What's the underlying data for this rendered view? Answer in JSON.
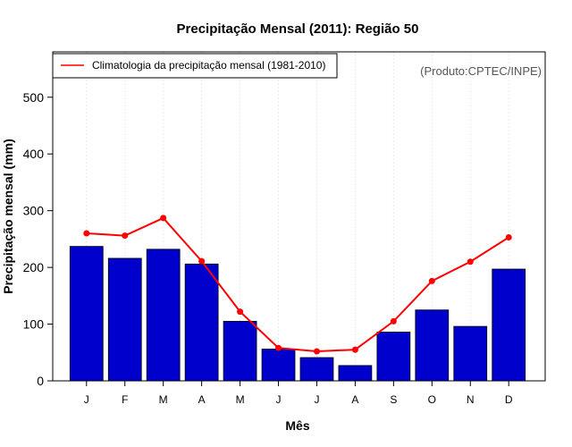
{
  "chart_data": {
    "type": "bar",
    "title": "Precipitação Mensal (2011): Região 50",
    "xlabel": "Mês",
    "ylabel": "Precipitação mensal (mm)",
    "categories": [
      "J",
      "F",
      "M",
      "A",
      "M",
      "J",
      "J",
      "A",
      "S",
      "O",
      "N",
      "D"
    ],
    "ylim": [
      0,
      580
    ],
    "yticks": [
      0,
      100,
      200,
      300,
      400,
      500
    ],
    "grid": "vertical dotted",
    "legend_position": "top-left",
    "source_note": "(Produto:CPTEC/INPE)",
    "series": [
      {
        "name": "Precipitação mensal 2011",
        "type": "bar",
        "color": "#0000cc",
        "values": [
          237,
          216,
          232,
          206,
          105,
          56,
          41,
          27,
          86,
          125,
          96,
          197
        ]
      },
      {
        "name": "Climatologia da precipitação mensal (1981-2010)",
        "type": "line",
        "color": "#ff0000",
        "values": [
          260,
          256,
          287,
          211,
          122,
          58,
          52,
          55,
          105,
          176,
          210,
          253
        ]
      }
    ]
  }
}
